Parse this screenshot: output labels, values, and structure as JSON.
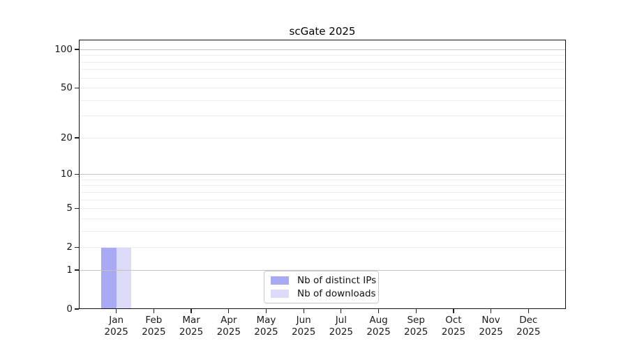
{
  "title": "scGate 2025",
  "chart_data": {
    "type": "bar",
    "title": "scGate 2025",
    "categories": [
      "Jan",
      "Feb",
      "Mar",
      "Apr",
      "May",
      "Jun",
      "Jul",
      "Aug",
      "Sep",
      "Oct",
      "Nov",
      "Dec"
    ],
    "x_year": "2025",
    "series": [
      {
        "name": "Nb of distinct IPs",
        "color": "#a9a9f5",
        "values": [
          2,
          0,
          0,
          0,
          0,
          0,
          0,
          0,
          0,
          0,
          0,
          0
        ]
      },
      {
        "name": "Nb of downloads",
        "color": "#dcdcf8",
        "values": [
          2,
          0,
          0,
          0,
          0,
          0,
          0,
          0,
          0,
          0,
          0,
          0
        ]
      }
    ],
    "y_scale": "log1p",
    "y_ticks": [
      0,
      1,
      2,
      5,
      10,
      20,
      50,
      100
    ],
    "y_major_gridlines": [
      1,
      10,
      100
    ],
    "y_minor_gridlines": [
      2,
      3,
      4,
      5,
      6,
      7,
      8,
      9,
      20,
      30,
      40,
      50,
      60,
      70,
      80,
      90
    ],
    "y_axis_max": 119,
    "ylim": [
      0,
      119
    ],
    "grid": true,
    "legend_position": "lower center",
    "colors": {
      "axis": "#121212",
      "major_grid": "#c3c3c3",
      "minor_grid": "#ededed",
      "text": "#1a1a1a"
    }
  }
}
